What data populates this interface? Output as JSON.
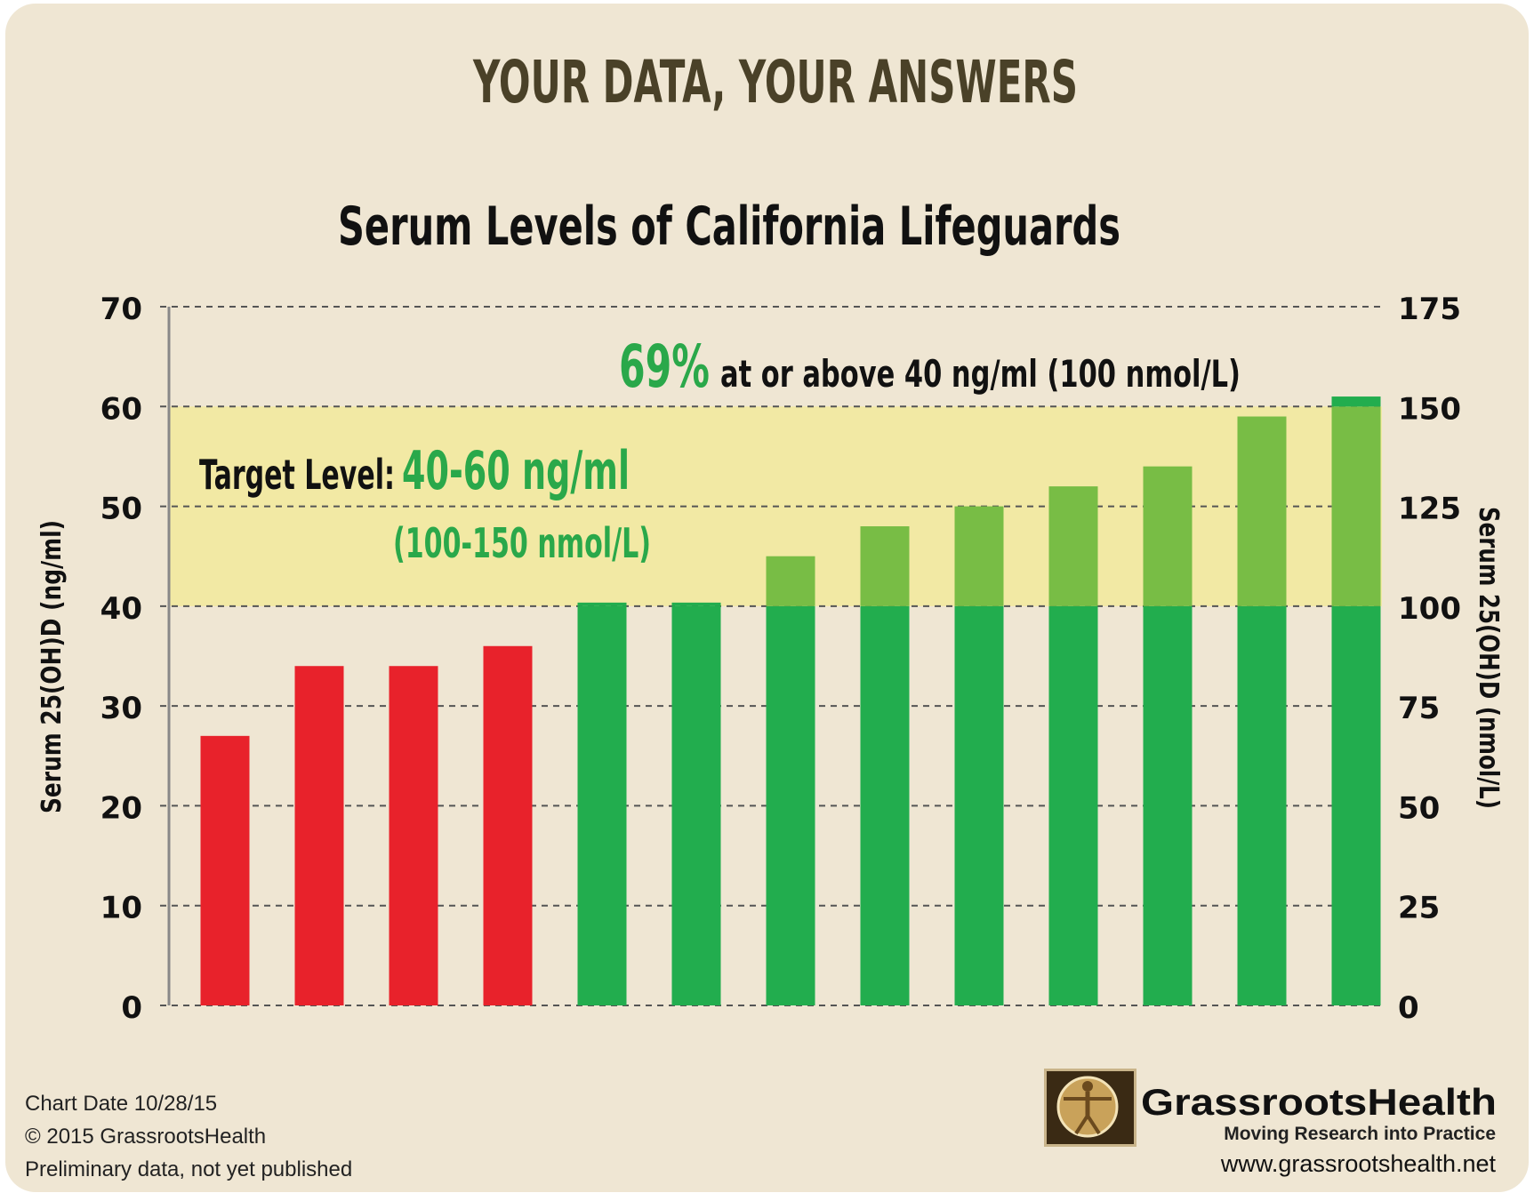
{
  "header": {
    "banner": "YOUR DATA, YOUR ANSWERS"
  },
  "annotations": {
    "percent": "69%",
    "percent_text": "at or above 40 ng/ml (100 nmol/L)",
    "target_label": "Target Level:",
    "target_range": "40-60 ng/ml",
    "target_range_nmol": "(100-150 nmol/L)"
  },
  "footer": {
    "chart_date": "Chart Date 10/28/15",
    "copyright": "© 2015 GrassrootsHealth",
    "note": "Preliminary data, not yet published"
  },
  "logo": {
    "name": "GrassrootsHealth",
    "tagline": "Moving Research into Practice",
    "url": "www.grassrootshealth.net",
    "icon": "vitruvian-man-icon"
  },
  "colors": {
    "background": "#efe6d3",
    "banner": "#4a4128",
    "below_target": "#e8222b",
    "at_target_base": "#22ad4e",
    "above_target": "#78bd45",
    "target_band": "#f2e9a4",
    "accent_green": "#2aa84a"
  },
  "chart_data": {
    "type": "bar",
    "title": "Serum Levels of California Lifeguards",
    "ylabel": "Serum 25(OH)D (ng/ml)",
    "ylabel_right": "Serum 25(OH)D (nmol/L)",
    "ylim": [
      0,
      70
    ],
    "ylim_right": [
      0,
      175
    ],
    "yticks": [
      0,
      10,
      20,
      30,
      40,
      50,
      60,
      70
    ],
    "yticks_right": [
      0,
      25,
      50,
      75,
      100,
      125,
      150,
      175
    ],
    "grid": true,
    "target_band": [
      40,
      60
    ],
    "threshold": 40,
    "values": [
      27,
      34,
      34,
      36,
      40,
      40,
      45,
      48,
      50,
      52,
      54,
      59,
      61
    ]
  }
}
